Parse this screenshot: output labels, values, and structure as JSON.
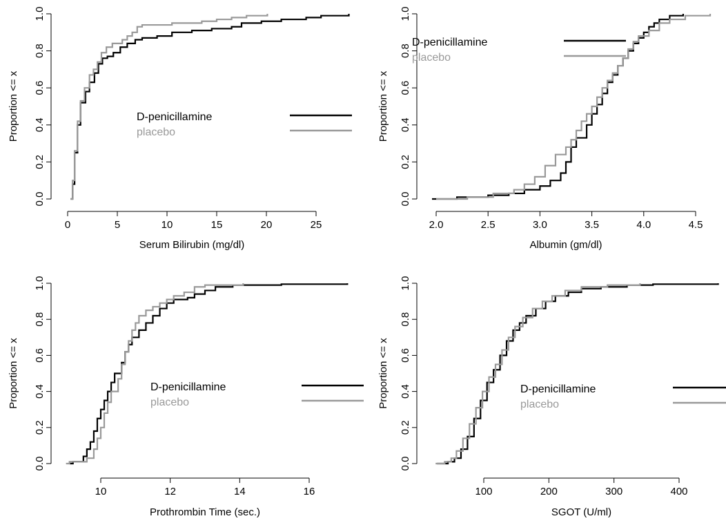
{
  "chart_data": [
    {
      "type": "line",
      "subtype": "empirical-cdf-step",
      "xlabel": "Serum Bilirubin (mg/dl)",
      "ylabel": "Proportion <= x",
      "xlim": [
        0,
        28.5
      ],
      "ylim": [
        0,
        1
      ],
      "xticks": [
        0,
        5,
        10,
        15,
        20,
        25
      ],
      "yticks": [
        0,
        0.2,
        0.4,
        0.6,
        0.8,
        1.0
      ],
      "xtick_labels": [
        "0",
        "5",
        "10",
        "15",
        "20",
        "25"
      ],
      "ytick_labels": [
        "0.0",
        "0.2",
        "0.4",
        "0.6",
        "0.8",
        "1.0"
      ],
      "legend_position": "middle-right",
      "series": [
        {
          "name": "D-penicillamine",
          "color": "#000000",
          "points": [
            [
              0.3,
              0
            ],
            [
              0.5,
              0.08
            ],
            [
              0.7,
              0.25
            ],
            [
              1.0,
              0.4
            ],
            [
              1.3,
              0.52
            ],
            [
              1.8,
              0.58
            ],
            [
              2.2,
              0.63
            ],
            [
              2.7,
              0.68
            ],
            [
              3.1,
              0.73
            ],
            [
              3.5,
              0.76
            ],
            [
              4.0,
              0.77
            ],
            [
              4.6,
              0.79
            ],
            [
              5.3,
              0.82
            ],
            [
              6.0,
              0.84
            ],
            [
              6.8,
              0.86
            ],
            [
              7.5,
              0.87
            ],
            [
              9.0,
              0.88
            ],
            [
              10.5,
              0.9
            ],
            [
              12.5,
              0.91
            ],
            [
              14.5,
              0.92
            ],
            [
              16.5,
              0.93
            ],
            [
              17.5,
              0.95
            ],
            [
              19.5,
              0.96
            ],
            [
              21.5,
              0.97
            ],
            [
              24.0,
              0.98
            ],
            [
              25.5,
              0.99
            ],
            [
              28.3,
              1.0
            ]
          ]
        },
        {
          "name": "placebo",
          "color": "#999999",
          "points": [
            [
              0.3,
              0
            ],
            [
              0.5,
              0.1
            ],
            [
              0.7,
              0.26
            ],
            [
              1.0,
              0.42
            ],
            [
              1.3,
              0.53
            ],
            [
              1.7,
              0.6
            ],
            [
              2.2,
              0.67
            ],
            [
              2.6,
              0.7
            ],
            [
              3.0,
              0.74
            ],
            [
              3.4,
              0.79
            ],
            [
              3.9,
              0.82
            ],
            [
              4.5,
              0.84
            ],
            [
              5.5,
              0.86
            ],
            [
              6.0,
              0.88
            ],
            [
              6.5,
              0.9
            ],
            [
              7.0,
              0.93
            ],
            [
              7.5,
              0.94
            ],
            [
              10.5,
              0.95
            ],
            [
              13.5,
              0.96
            ],
            [
              15.0,
              0.97
            ],
            [
              16.5,
              0.98
            ],
            [
              18.0,
              0.99
            ],
            [
              20.1,
              1.0
            ]
          ]
        }
      ]
    },
    {
      "type": "line",
      "subtype": "empirical-cdf-step",
      "xlabel": "Albumin (gm/dl)",
      "ylabel": "Proportion <= x",
      "xlim": [
        1.9,
        4.7
      ],
      "ylim": [
        0,
        1
      ],
      "xticks": [
        2.0,
        2.5,
        3.0,
        3.5,
        4.0,
        4.5
      ],
      "yticks": [
        0,
        0.2,
        0.4,
        0.6,
        0.8,
        1.0
      ],
      "xtick_labels": [
        "2.0",
        "2.5",
        "3.0",
        "3.5",
        "4.0",
        "4.5"
      ],
      "ytick_labels": [
        "0.0",
        "0.2",
        "0.4",
        "0.6",
        "0.8",
        "1.0"
      ],
      "legend_position": "top-left",
      "series": [
        {
          "name": "D-penicillamine",
          "color": "#000000",
          "points": [
            [
              1.96,
              0
            ],
            [
              2.2,
              0.01
            ],
            [
              2.5,
              0.02
            ],
            [
              2.7,
              0.03
            ],
            [
              2.85,
              0.05
            ],
            [
              3.0,
              0.07
            ],
            [
              3.1,
              0.1
            ],
            [
              3.2,
              0.14
            ],
            [
              3.25,
              0.2
            ],
            [
              3.3,
              0.28
            ],
            [
              3.35,
              0.33
            ],
            [
              3.45,
              0.4
            ],
            [
              3.5,
              0.46
            ],
            [
              3.55,
              0.51
            ],
            [
              3.6,
              0.57
            ],
            [
              3.65,
              0.63
            ],
            [
              3.7,
              0.67
            ],
            [
              3.75,
              0.72
            ],
            [
              3.8,
              0.76
            ],
            [
              3.85,
              0.8
            ],
            [
              3.9,
              0.84
            ],
            [
              3.95,
              0.87
            ],
            [
              4.0,
              0.9
            ],
            [
              4.05,
              0.93
            ],
            [
              4.1,
              0.95
            ],
            [
              4.15,
              0.97
            ],
            [
              4.25,
              0.99
            ],
            [
              4.38,
              1.0
            ]
          ]
        },
        {
          "name": "placebo",
          "color": "#999999",
          "points": [
            [
              2.0,
              0
            ],
            [
              2.3,
              0.01
            ],
            [
              2.55,
              0.03
            ],
            [
              2.75,
              0.05
            ],
            [
              2.85,
              0.08
            ],
            [
              2.95,
              0.12
            ],
            [
              3.05,
              0.18
            ],
            [
              3.15,
              0.24
            ],
            [
              3.25,
              0.28
            ],
            [
              3.3,
              0.32
            ],
            [
              3.35,
              0.37
            ],
            [
              3.4,
              0.42
            ],
            [
              3.45,
              0.46
            ],
            [
              3.5,
              0.5
            ],
            [
              3.55,
              0.55
            ],
            [
              3.6,
              0.6
            ],
            [
              3.65,
              0.64
            ],
            [
              3.7,
              0.68
            ],
            [
              3.75,
              0.72
            ],
            [
              3.8,
              0.76
            ],
            [
              3.85,
              0.81
            ],
            [
              3.9,
              0.85
            ],
            [
              3.95,
              0.88
            ],
            [
              4.05,
              0.91
            ],
            [
              4.15,
              0.95
            ],
            [
              4.25,
              0.97
            ],
            [
              4.4,
              0.99
            ],
            [
              4.64,
              1.0
            ]
          ]
        }
      ]
    },
    {
      "type": "line",
      "subtype": "empirical-cdf-step",
      "xlabel": "Prothrombin Time (sec.)",
      "ylabel": "Proportion <= x",
      "xlim": [
        8.7,
        17.5
      ],
      "ylim": [
        0,
        1
      ],
      "xticks": [
        10,
        12,
        14,
        16
      ],
      "yticks": [
        0,
        0.2,
        0.4,
        0.6,
        0.8,
        1.0
      ],
      "xtick_labels": [
        "10",
        "12",
        "14",
        "16"
      ],
      "ytick_labels": [
        "0.0",
        "0.2",
        "0.4",
        "0.6",
        "0.8",
        "1.0"
      ],
      "legend_position": "middle-right",
      "series": [
        {
          "name": "D-penicillamine",
          "color": "#000000",
          "points": [
            [
              9.1,
              0
            ],
            [
              9.2,
              0.01
            ],
            [
              9.5,
              0.04
            ],
            [
              9.6,
              0.08
            ],
            [
              9.7,
              0.12
            ],
            [
              9.8,
              0.18
            ],
            [
              9.9,
              0.25
            ],
            [
              10.0,
              0.3
            ],
            [
              10.1,
              0.35
            ],
            [
              10.2,
              0.4
            ],
            [
              10.3,
              0.45
            ],
            [
              10.4,
              0.5
            ],
            [
              10.6,
              0.56
            ],
            [
              10.7,
              0.62
            ],
            [
              10.8,
              0.66
            ],
            [
              10.9,
              0.7
            ],
            [
              11.1,
              0.74
            ],
            [
              11.3,
              0.78
            ],
            [
              11.5,
              0.82
            ],
            [
              11.7,
              0.86
            ],
            [
              11.9,
              0.89
            ],
            [
              12.1,
              0.91
            ],
            [
              12.5,
              0.92
            ],
            [
              12.7,
              0.94
            ],
            [
              13.0,
              0.96
            ],
            [
              13.3,
              0.98
            ],
            [
              13.8,
              0.99
            ],
            [
              15.2,
              0.995
            ],
            [
              17.1,
              1.0
            ]
          ]
        },
        {
          "name": "placebo",
          "color": "#999999",
          "points": [
            [
              9.0,
              0
            ],
            [
              9.1,
              0.01
            ],
            [
              9.6,
              0.03
            ],
            [
              9.8,
              0.08
            ],
            [
              9.9,
              0.14
            ],
            [
              10.0,
              0.2
            ],
            [
              10.1,
              0.28
            ],
            [
              10.2,
              0.34
            ],
            [
              10.3,
              0.4
            ],
            [
              10.5,
              0.47
            ],
            [
              10.6,
              0.55
            ],
            [
              10.7,
              0.62
            ],
            [
              10.8,
              0.68
            ],
            [
              10.9,
              0.74
            ],
            [
              11.0,
              0.78
            ],
            [
              11.1,
              0.82
            ],
            [
              11.3,
              0.85
            ],
            [
              11.5,
              0.87
            ],
            [
              11.7,
              0.89
            ],
            [
              11.9,
              0.91
            ],
            [
              12.1,
              0.93
            ],
            [
              12.4,
              0.95
            ],
            [
              12.7,
              0.98
            ],
            [
              13.0,
              0.99
            ],
            [
              14.1,
              1.0
            ]
          ]
        }
      ]
    },
    {
      "type": "line",
      "subtype": "empirical-cdf-step",
      "xlabel": "SGOT (U/ml)",
      "ylabel": "Proportion <= x",
      "xlim": [
        20,
        465
      ],
      "ylim": [
        0,
        1
      ],
      "xticks": [
        100,
        200,
        300,
        400
      ],
      "yticks": [
        0,
        0.2,
        0.4,
        0.6,
        0.8,
        1.0
      ],
      "xtick_labels": [
        "100",
        "200",
        "300",
        "400"
      ],
      "ytick_labels": [
        "0.0",
        "0.2",
        "0.4",
        "0.6",
        "0.8",
        "1.0"
      ],
      "legend_position": "middle-right",
      "series": [
        {
          "name": "D-penicillamine",
          "color": "#000000",
          "points": [
            [
              28,
              0
            ],
            [
              45,
              0.01
            ],
            [
              55,
              0.03
            ],
            [
              65,
              0.08
            ],
            [
              75,
              0.15
            ],
            [
              85,
              0.25
            ],
            [
              95,
              0.35
            ],
            [
              105,
              0.45
            ],
            [
              115,
              0.52
            ],
            [
              125,
              0.6
            ],
            [
              135,
              0.68
            ],
            [
              145,
              0.74
            ],
            [
              155,
              0.78
            ],
            [
              165,
              0.82
            ],
            [
              180,
              0.86
            ],
            [
              195,
              0.9
            ],
            [
              210,
              0.93
            ],
            [
              230,
              0.95
            ],
            [
              250,
              0.97
            ],
            [
              280,
              0.98
            ],
            [
              320,
              0.99
            ],
            [
              360,
              0.995
            ],
            [
              460,
              1.0
            ]
          ]
        },
        {
          "name": "placebo",
          "color": "#999999",
          "points": [
            [
              26,
              0
            ],
            [
              40,
              0.01
            ],
            [
              50,
              0.03
            ],
            [
              58,
              0.07
            ],
            [
              68,
              0.14
            ],
            [
              78,
              0.22
            ],
            [
              88,
              0.31
            ],
            [
              98,
              0.4
            ],
            [
              108,
              0.48
            ],
            [
              118,
              0.55
            ],
            [
              128,
              0.63
            ],
            [
              138,
              0.7
            ],
            [
              148,
              0.76
            ],
            [
              160,
              0.81
            ],
            [
              175,
              0.86
            ],
            [
              190,
              0.9
            ],
            [
              205,
              0.93
            ],
            [
              225,
              0.96
            ],
            [
              250,
              0.98
            ],
            [
              290,
              0.99
            ],
            [
              340,
              1.0
            ]
          ]
        }
      ]
    }
  ]
}
